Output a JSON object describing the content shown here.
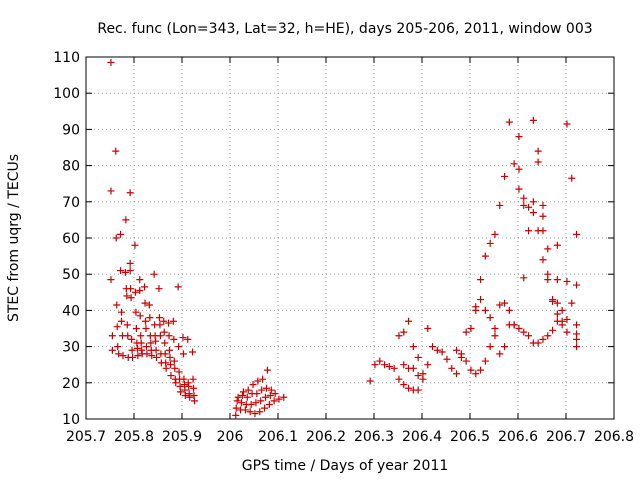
{
  "chart_data": {
    "type": "scatter",
    "title": "Rec. func (Lon=343, Lat=32, h=HE), days 205-206, 2011, window 003",
    "xlabel": "GPS time / Days of year 2011",
    "ylabel": "STEC from uqrg / TECUs",
    "xlim": [
      205.7,
      206.8
    ],
    "ylim": [
      10,
      110
    ],
    "xticks": [
      "205.7",
      "205.8",
      "205.9",
      "206",
      "206.1",
      "206.2",
      "206.3",
      "206.4",
      "206.5",
      "206.6",
      "206.7",
      "206.8"
    ],
    "yticks": [
      "10",
      "20",
      "30",
      "40",
      "50",
      "60",
      "70",
      "80",
      "90",
      "100",
      "110"
    ],
    "grid": true,
    "marker_color": "#cc0000",
    "marker": "plus",
    "points": [
      [
        205.752,
        108.5
      ],
      [
        205.752,
        73
      ],
      [
        205.752,
        48.5
      ],
      [
        205.755,
        33
      ],
      [
        205.755,
        29
      ],
      [
        205.762,
        84
      ],
      [
        205.763,
        60
      ],
      [
        205.764,
        41.5
      ],
      [
        205.765,
        35.5
      ],
      [
        205.766,
        30
      ],
      [
        205.768,
        28
      ],
      [
        205.772,
        61
      ],
      [
        205.772,
        51
      ],
      [
        205.774,
        39.5
      ],
      [
        205.774,
        37
      ],
      [
        205.776,
        33
      ],
      [
        205.777,
        27.5
      ],
      [
        205.782,
        50.5
      ],
      [
        205.783,
        65
      ],
      [
        205.784,
        46
      ],
      [
        205.785,
        44
      ],
      [
        205.786,
        36
      ],
      [
        205.787,
        33
      ],
      [
        205.788,
        27
      ],
      [
        205.792,
        72.5
      ],
      [
        205.792,
        53
      ],
      [
        205.792,
        51
      ],
      [
        205.793,
        46
      ],
      [
        205.794,
        43.5
      ],
      [
        205.795,
        32
      ],
      [
        205.796,
        29
      ],
      [
        205.797,
        27
      ],
      [
        205.802,
        58
      ],
      [
        205.803,
        45
      ],
      [
        205.804,
        39.5
      ],
      [
        205.805,
        35
      ],
      [
        205.806,
        31
      ],
      [
        205.807,
        29.5
      ],
      [
        205.808,
        27.5
      ],
      [
        205.812,
        48.5
      ],
      [
        205.812,
        45.5
      ],
      [
        205.813,
        38.5
      ],
      [
        205.814,
        33
      ],
      [
        205.815,
        31
      ],
      [
        205.816,
        29
      ],
      [
        205.817,
        28
      ],
      [
        205.822,
        46.5
      ],
      [
        205.823,
        42
      ],
      [
        205.824,
        37
      ],
      [
        205.825,
        35
      ],
      [
        205.826,
        30
      ],
      [
        205.827,
        28
      ],
      [
        205.832,
        41.5
      ],
      [
        205.833,
        38
      ],
      [
        205.834,
        33
      ],
      [
        205.835,
        31
      ],
      [
        205.836,
        29
      ],
      [
        205.837,
        27.5
      ],
      [
        205.842,
        50
      ],
      [
        205.843,
        36
      ],
      [
        205.844,
        33
      ],
      [
        205.845,
        31.5
      ],
      [
        205.846,
        29
      ],
      [
        205.847,
        27
      ],
      [
        205.852,
        46
      ],
      [
        205.853,
        38
      ],
      [
        205.854,
        36
      ],
      [
        205.855,
        33
      ],
      [
        205.856,
        28
      ],
      [
        205.857,
        25.5
      ],
      [
        205.862,
        37
      ],
      [
        205.863,
        34
      ],
      [
        205.864,
        31
      ],
      [
        205.865,
        28
      ],
      [
        205.866,
        25.5
      ],
      [
        205.867,
        24
      ],
      [
        205.872,
        36.5
      ],
      [
        205.873,
        33
      ],
      [
        205.874,
        29
      ],
      [
        205.875,
        27
      ],
      [
        205.876,
        25
      ],
      [
        205.877,
        22
      ],
      [
        205.882,
        37
      ],
      [
        205.883,
        32
      ],
      [
        205.884,
        26
      ],
      [
        205.885,
        24
      ],
      [
        205.886,
        21
      ],
      [
        205.887,
        20
      ],
      [
        205.892,
        46.5
      ],
      [
        205.893,
        30
      ],
      [
        205.894,
        23
      ],
      [
        205.895,
        21
      ],
      [
        205.896,
        19
      ],
      [
        205.897,
        17.5
      ],
      [
        205.902,
        32.5
      ],
      [
        205.903,
        28
      ],
      [
        205.904,
        21
      ],
      [
        205.905,
        19.5
      ],
      [
        205.906,
        18
      ],
      [
        205.907,
        16.5
      ],
      [
        205.912,
        32
      ],
      [
        205.913,
        20
      ],
      [
        205.914,
        19
      ],
      [
        205.915,
        17
      ],
      [
        205.916,
        16
      ],
      [
        205.922,
        28.5
      ],
      [
        205.923,
        21
      ],
      [
        205.924,
        18.5
      ],
      [
        205.925,
        16.5
      ],
      [
        205.926,
        15
      ],
      [
        206.012,
        11
      ],
      [
        206.013,
        13
      ],
      [
        206.015,
        15
      ],
      [
        206.017,
        16
      ],
      [
        206.022,
        12.5
      ],
      [
        206.024,
        14.5
      ],
      [
        206.026,
        16.5
      ],
      [
        206.028,
        17.5
      ],
      [
        206.032,
        12.5
      ],
      [
        206.034,
        14
      ],
      [
        206.036,
        16
      ],
      [
        206.038,
        18
      ],
      [
        206.042,
        12
      ],
      [
        206.044,
        14
      ],
      [
        206.046,
        17
      ],
      [
        206.048,
        19.5
      ],
      [
        206.052,
        11.5
      ],
      [
        206.054,
        14.5
      ],
      [
        206.056,
        17
      ],
      [
        206.058,
        20.5
      ],
      [
        206.062,
        12
      ],
      [
        206.064,
        15
      ],
      [
        206.066,
        18
      ],
      [
        206.068,
        21
      ],
      [
        206.072,
        13
      ],
      [
        206.074,
        16
      ],
      [
        206.076,
        18.5
      ],
      [
        206.078,
        23.5
      ],
      [
        206.082,
        14
      ],
      [
        206.084,
        16.5
      ],
      [
        206.086,
        18
      ],
      [
        206.092,
        15
      ],
      [
        206.094,
        17
      ],
      [
        206.102,
        15.5
      ],
      [
        206.112,
        16
      ],
      [
        206.292,
        20.5
      ],
      [
        206.302,
        25
      ],
      [
        206.312,
        26
      ],
      [
        206.322,
        25
      ],
      [
        206.332,
        24.5
      ],
      [
        206.342,
        24
      ],
      [
        206.352,
        33
      ],
      [
        206.362,
        34
      ],
      [
        206.372,
        37
      ],
      [
        206.382,
        30
      ],
      [
        206.392,
        27
      ],
      [
        206.352,
        21
      ],
      [
        206.362,
        19.5
      ],
      [
        206.372,
        18.5
      ],
      [
        206.382,
        18
      ],
      [
        206.392,
        18
      ],
      [
        206.402,
        21
      ],
      [
        206.362,
        25
      ],
      [
        206.372,
        24
      ],
      [
        206.382,
        24
      ],
      [
        206.392,
        22
      ],
      [
        206.402,
        22.5
      ],
      [
        206.412,
        25
      ],
      [
        206.412,
        35
      ],
      [
        206.422,
        30
      ],
      [
        206.432,
        29
      ],
      [
        206.442,
        28.5
      ],
      [
        206.452,
        26.5
      ],
      [
        206.462,
        24
      ],
      [
        206.472,
        22.5
      ],
      [
        206.482,
        28
      ],
      [
        206.492,
        34
      ],
      [
        206.502,
        35
      ],
      [
        206.512,
        41
      ],
      [
        206.522,
        48.5
      ],
      [
        206.532,
        55
      ],
      [
        206.542,
        58.5
      ],
      [
        206.552,
        61
      ],
      [
        206.562,
        69
      ],
      [
        206.572,
        77
      ],
      [
        206.582,
        92
      ],
      [
        206.592,
        80.5
      ],
      [
        206.602,
        73.5
      ],
      [
        206.612,
        69
      ],
      [
        206.622,
        68.5
      ],
      [
        206.632,
        92.5
      ],
      [
        206.642,
        84
      ],
      [
        206.652,
        69
      ],
      [
        206.662,
        48.5
      ],
      [
        206.672,
        43
      ],
      [
        206.682,
        58
      ],
      [
        206.692,
        40
      ],
      [
        206.702,
        48
      ],
      [
        206.712,
        76.5
      ],
      [
        206.722,
        61
      ],
      [
        206.722,
        47
      ],
      [
        206.722,
        36
      ],
      [
        206.722,
        32
      ],
      [
        206.722,
        30
      ],
      [
        206.472,
        29
      ],
      [
        206.482,
        27
      ],
      [
        206.492,
        26
      ],
      [
        206.502,
        23.5
      ],
      [
        206.512,
        22.5
      ],
      [
        206.522,
        23.5
      ],
      [
        206.532,
        26
      ],
      [
        206.542,
        30
      ],
      [
        206.552,
        35
      ],
      [
        206.562,
        41.5
      ],
      [
        206.572,
        42
      ],
      [
        206.582,
        40
      ],
      [
        206.592,
        36
      ],
      [
        206.602,
        35
      ],
      [
        206.612,
        34
      ],
      [
        206.622,
        33
      ],
      [
        206.632,
        31
      ],
      [
        206.642,
        31
      ],
      [
        206.652,
        32
      ],
      [
        206.662,
        33
      ],
      [
        206.672,
        34.5
      ],
      [
        206.682,
        37
      ],
      [
        206.692,
        37
      ],
      [
        206.702,
        34
      ],
      [
        206.512,
        40
      ],
      [
        206.522,
        43
      ],
      [
        206.532,
        40
      ],
      [
        206.542,
        38
      ],
      [
        206.552,
        33
      ],
      [
        206.562,
        28
      ],
      [
        206.572,
        30
      ],
      [
        206.582,
        36
      ],
      [
        206.592,
        36
      ],
      [
        206.612,
        49
      ],
      [
        206.622,
        62
      ],
      [
        206.632,
        70
      ],
      [
        206.642,
        62
      ],
      [
        206.652,
        54
      ],
      [
        206.662,
        50
      ],
      [
        206.672,
        42.5
      ],
      [
        206.682,
        39
      ],
      [
        206.692,
        36
      ],
      [
        206.602,
        79
      ],
      [
        206.612,
        71
      ],
      [
        206.642,
        81
      ],
      [
        206.652,
        66
      ],
      [
        206.662,
        57
      ],
      [
        206.682,
        48.5
      ],
      [
        206.702,
        37.5
      ],
      [
        206.712,
        42
      ],
      [
        206.722,
        33.5
      ],
      [
        206.602,
        88
      ],
      [
        206.632,
        67
      ],
      [
        206.652,
        62
      ],
      [
        206.682,
        42
      ],
      [
        206.702,
        91.5
      ]
    ]
  }
}
